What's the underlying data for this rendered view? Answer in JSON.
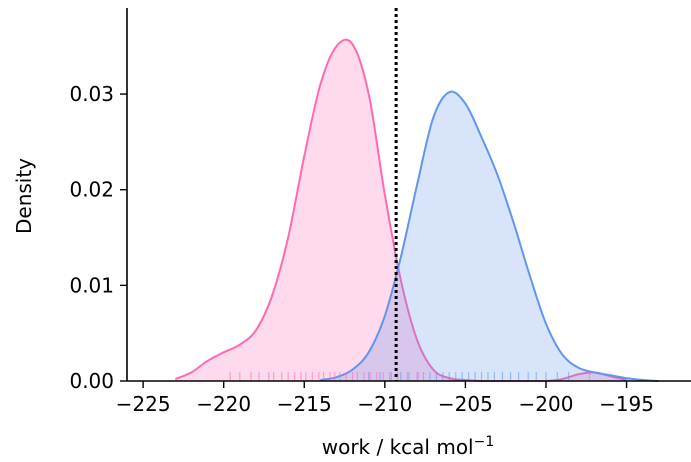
{
  "chart_data": {
    "type": "area",
    "xlabel": "work / kcal mol",
    "xlabel_superscript": "−1",
    "ylabel": "Density",
    "xlim": [
      -226,
      -191
    ],
    "ylim": [
      0,
      0.039
    ],
    "x_ticks": [
      -225,
      -220,
      -215,
      -210,
      -205,
      -200,
      -195
    ],
    "x_tick_labels": [
      "−225",
      "−220",
      "−215",
      "−210",
      "−205",
      "−200",
      "−195"
    ],
    "y_ticks": [
      0,
      0.01,
      0.02,
      0.03
    ],
    "y_tick_labels": [
      "0.00",
      "0.01",
      "0.02",
      "0.03"
    ],
    "vline": {
      "x": -209.3,
      "style": "dotted",
      "color": "#000000"
    },
    "grid": false,
    "series": [
      {
        "color": "#ff69b4",
        "x": [
          -223,
          -222,
          -221,
          -220,
          -219,
          -218,
          -217,
          -216,
          -215,
          -214,
          -213,
          -212,
          -211,
          -210,
          -209,
          -208,
          -207,
          -206,
          -205,
          -204,
          -203,
          -202,
          -201,
          -200,
          -199,
          -198,
          -197,
          -196,
          -195
        ],
        "y": [
          0.0002,
          0.0009,
          0.0021,
          0.003,
          0.0038,
          0.0053,
          0.0089,
          0.015,
          0.0235,
          0.031,
          0.035,
          0.0352,
          0.03,
          0.0195,
          0.0105,
          0.0043,
          0.0012,
          0.0003,
          0.0001,
          0.0,
          0.0,
          0.0,
          0.0,
          0.0,
          0.0002,
          0.0007,
          0.0009,
          0.0005,
          0.0001
        ],
        "rug": [
          -219.6,
          -219.0,
          -218.3,
          -217.8,
          -217.2,
          -216.9,
          -216.4,
          -216.0,
          -215.6,
          -215.2,
          -214.9,
          -214.5,
          -214.1,
          -213.8,
          -213.4,
          -213.1,
          -212.8,
          -212.4,
          -212.0,
          -211.7,
          -211.3,
          -210.9,
          -210.5,
          -210.1,
          -209.7,
          -209.2,
          -208.6,
          -207.9,
          -197.3
        ]
      },
      {
        "color": "#6495ed",
        "x": [
          -214,
          -213,
          -212,
          -211,
          -210,
          -209,
          -208,
          -207,
          -206,
          -205,
          -204,
          -203,
          -202,
          -201,
          -200,
          -199,
          -198,
          -197,
          -196,
          -195,
          -194,
          -193
        ],
        "y": [
          0.0001,
          0.0004,
          0.0012,
          0.003,
          0.0068,
          0.013,
          0.0205,
          0.0275,
          0.0302,
          0.029,
          0.0255,
          0.0215,
          0.0165,
          0.011,
          0.006,
          0.0028,
          0.0014,
          0.0009,
          0.0006,
          0.0003,
          0.0001,
          0.0
        ]
      }
    ],
    "rug_blue": [
      -211.0,
      -210.3,
      -209.6,
      -209.0,
      -208.5,
      -208.0,
      -207.6,
      -207.2,
      -206.8,
      -206.4,
      -206.0,
      -205.6,
      -205.2,
      -204.8,
      -204.4,
      -204.0,
      -203.6,
      -203.2,
      -202.7,
      -202.2,
      -201.7,
      -201.1,
      -200.6,
      -200.0,
      -199.3,
      -198.6
    ]
  }
}
